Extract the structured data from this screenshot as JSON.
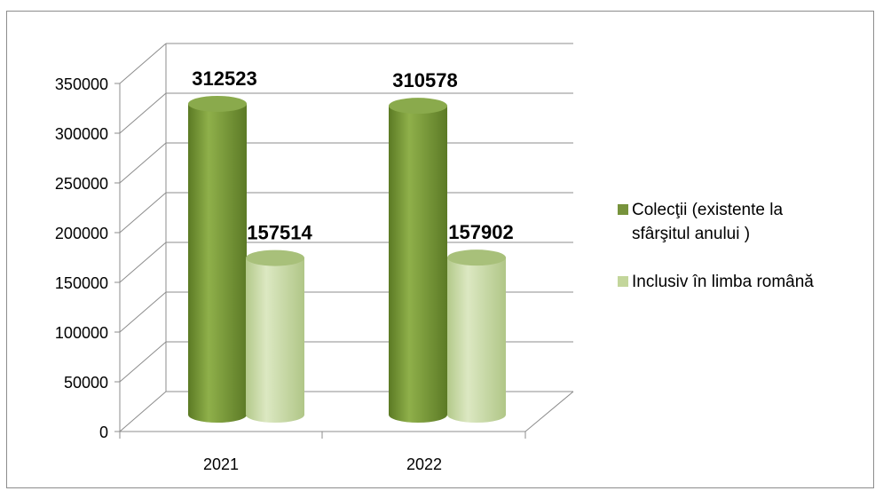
{
  "chart_data": {
    "type": "bar",
    "style": "3d-cylinder",
    "categories": [
      "2021",
      "2022"
    ],
    "series": [
      {
        "name": "Colecţii (existente la sfârşitul anului )",
        "values": [
          312523,
          310578
        ],
        "color": "#77933c"
      },
      {
        "name": "Inclusiv în limba română",
        "values": [
          157514,
          157902
        ],
        "color": "#c3d69b"
      }
    ],
    "ylim": [
      0,
      350000
    ],
    "y_ticks": [
      "0",
      "50000",
      "100000",
      "150000",
      "200000",
      "250000",
      "300000",
      "350000"
    ],
    "data_labels": [
      [
        "312523",
        "310578"
      ],
      [
        "157514",
        "157902"
      ]
    ],
    "grid": true,
    "legend_position": "right"
  }
}
